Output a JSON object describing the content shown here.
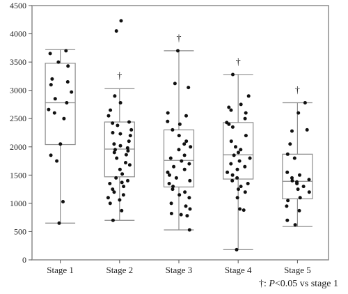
{
  "chart_data": {
    "type": "boxplot",
    "title": "",
    "xlabel": "",
    "ylabel": "",
    "ylim": [
      0,
      4500
    ],
    "yticks": [
      0,
      500,
      1000,
      1500,
      2000,
      2500,
      3000,
      3500,
      4000,
      4500
    ],
    "grid": false,
    "legend": "none",
    "colors": {
      "box_stroke": "#8c8c8c",
      "point": "#111111",
      "frame": "#8c8c8c"
    },
    "categories": [
      "Stage 1",
      "Stage 2",
      "Stage 3",
      "Stage 4",
      "Stage 5"
    ],
    "significance_marker": "†",
    "boxes": [
      {
        "category": "Stage 1",
        "whisker_low": 650,
        "q1": 2040,
        "median": 2780,
        "q3": 3480,
        "whisker_high": 3720,
        "significant": false
      },
      {
        "category": "Stage 2",
        "whisker_low": 700,
        "q1": 1470,
        "median": 1960,
        "q3": 2440,
        "whisker_high": 3030,
        "significant": true
      },
      {
        "category": "Stage 3",
        "whisker_low": 530,
        "q1": 1290,
        "median": 1760,
        "q3": 2300,
        "whisker_high": 3700,
        "significant": true
      },
      {
        "category": "Stage 4",
        "whisker_low": 180,
        "q1": 1430,
        "median": 1860,
        "q3": 2430,
        "whisker_high": 3280,
        "significant": true
      },
      {
        "category": "Stage 5",
        "whisker_low": 590,
        "q1": 1080,
        "median": 1390,
        "q3": 1870,
        "whisker_high": 2780,
        "significant": true
      }
    ],
    "points": [
      [
        3700,
        3650,
        3500,
        3430,
        3200,
        3150,
        3100,
        2970,
        2850,
        2780,
        2660,
        2600,
        2500,
        2050,
        1850,
        1750,
        1030,
        650
      ],
      [
        4230,
        4050,
        2900,
        2780,
        2650,
        2550,
        2440,
        2420,
        2380,
        2300,
        2250,
        2230,
        2200,
        2100,
        2050,
        2020,
        1980,
        1950,
        1930,
        1900,
        1860,
        1800,
        1720,
        1680,
        1600,
        1520,
        1450,
        1400,
        1370,
        1350,
        1300,
        1250,
        1200,
        1150,
        1100,
        1060,
        1000,
        870,
        700
      ],
      [
        3700,
        3120,
        3050,
        2600,
        2550,
        2450,
        2400,
        2300,
        2200,
        2100,
        2050,
        2000,
        1950,
        1850,
        1800,
        1750,
        1700,
        1650,
        1600,
        1550,
        1500,
        1450,
        1400,
        1350,
        1300,
        1250,
        1200,
        1150,
        1100,
        1000,
        950,
        900,
        820,
        800,
        780,
        530
      ],
      [
        3280,
        2900,
        2750,
        2700,
        2650,
        2600,
        2500,
        2430,
        2400,
        2350,
        2200,
        2100,
        2000,
        1950,
        1900,
        1850,
        1800,
        1750,
        1700,
        1650,
        1600,
        1550,
        1500,
        1450,
        1400,
        1350,
        1300,
        1250,
        1200,
        1100,
        900,
        880,
        180
      ],
      [
        2780,
        2600,
        2300,
        2280,
        2050,
        1870,
        1800,
        1550,
        1500,
        1450,
        1420,
        1400,
        1380,
        1350,
        1300,
        1250,
        1200,
        1100,
        1050,
        950,
        870,
        700,
        620
      ]
    ]
  },
  "footnote": {
    "marker": "†",
    "separator": ": ",
    "symbol": "P",
    "text": "<0.05 vs stage 1"
  }
}
